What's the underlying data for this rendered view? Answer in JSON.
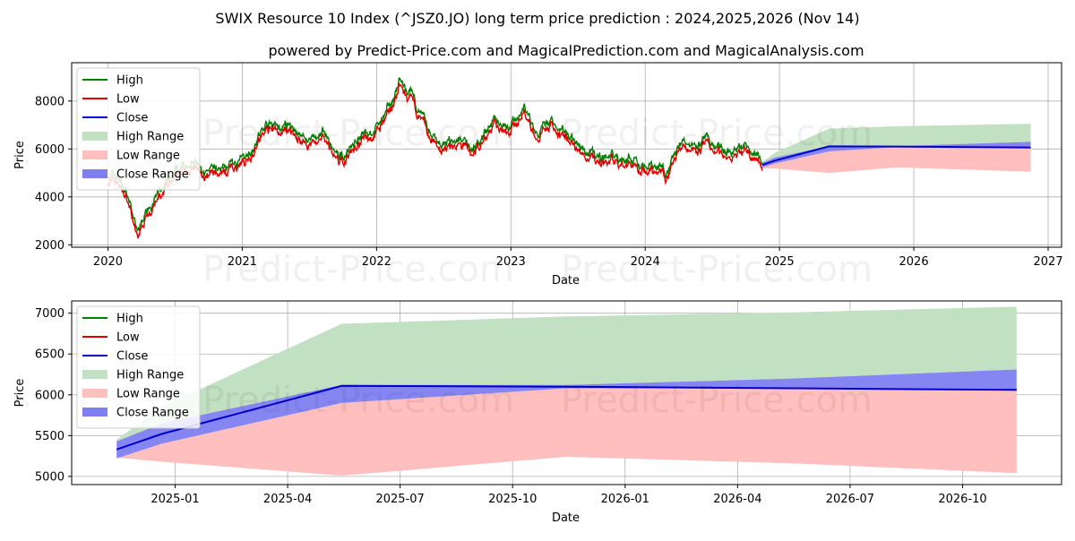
{
  "title": "SWIX Resource 10 Index (^JSZ0.JO) long term price prediction : 2024,2025,2026 (Nov 14)",
  "subtitle": "powered by Predict-Price.com and MagicalPrediction.com and MagicalAnalysis.com",
  "watermark": "Predict-Price.com",
  "colors": {
    "high": "#008000",
    "low": "#e00000",
    "close": "#0000cc",
    "high_range": "#c2e0c2",
    "low_range": "#ffbfbf",
    "close_range": "#7f7ff2",
    "grid": "#b0b0b0"
  },
  "chart_data": [
    {
      "type": "line",
      "name": "long-term",
      "xlabel": "Date",
      "ylabel": "Price",
      "xlim": [
        2019.73,
        2027.1
      ],
      "ylim": [
        1900,
        9600
      ],
      "xticks": [
        2020,
        2021,
        2022,
        2023,
        2024,
        2025,
        2026,
        2027
      ],
      "xtick_labels": [
        "2020",
        "2021",
        "2022",
        "2023",
        "2024",
        "2025",
        "2026",
        "2027"
      ],
      "yticks": [
        2000,
        4000,
        6000,
        8000
      ],
      "ytick_labels": [
        "2000",
        "4000",
        "6000",
        "8000"
      ],
      "legend": [
        "High",
        "Low",
        "Close",
        "High Range",
        "Low Range",
        "Close Range"
      ],
      "legend_position": "upper left",
      "history_anchors": {
        "x": [
          2020.0,
          2020.08,
          2020.16,
          2020.22,
          2020.3,
          2020.45,
          2020.6,
          2020.75,
          2020.85,
          2021.0,
          2021.18,
          2021.35,
          2021.5,
          2021.6,
          2021.72,
          2021.85,
          2022.0,
          2022.1,
          2022.17,
          2022.3,
          2022.38,
          2022.5,
          2022.6,
          2022.72,
          2022.85,
          2023.0,
          2023.1,
          2023.2,
          2023.3,
          2023.45,
          2023.55,
          2023.65,
          2023.8,
          2024.0,
          2024.15,
          2024.28,
          2024.45,
          2024.6,
          2024.7,
          2024.78,
          2024.87
        ],
        "close": [
          4800,
          4700,
          3800,
          2300,
          3600,
          4400,
          5400,
          4800,
          5100,
          5400,
          6900,
          6700,
          6300,
          6500,
          5300,
          6300,
          6800,
          7600,
          8700,
          7600,
          6600,
          6000,
          6300,
          5800,
          7000,
          7000,
          7600,
          6400,
          7000,
          6600,
          5700,
          5600,
          5600,
          5300,
          5000,
          6200,
          6200,
          5700,
          5800,
          6000,
          5350
        ]
      },
      "forecast": {
        "x": [
          2024.87,
          2024.97,
          2025.37,
          2025.87,
          2026.87
        ],
        "high_range_upper": [
          5450,
          5850,
          6850,
          6950,
          7050
        ],
        "low_range_lower": [
          5200,
          5180,
          5000,
          5230,
          5050
        ],
        "close_range_upper": [
          5420,
          5650,
          6120,
          6120,
          6300
        ],
        "close_range_lower": [
          5220,
          5400,
          5900,
          6080,
          6040
        ],
        "close": [
          5330,
          5520,
          6110,
          6100,
          6060
        ]
      }
    },
    {
      "type": "line",
      "name": "forecast-detail",
      "xlabel": "Date",
      "ylabel": "Price",
      "xlim": [
        2024.77,
        2026.97
      ],
      "ylim": [
        4900,
        7150
      ],
      "xticks": [
        2025.0,
        2025.25,
        2025.5,
        2025.75,
        2026.0,
        2026.25,
        2026.5,
        2026.75
      ],
      "xtick_labels": [
        "2025-01",
        "2025-04",
        "2025-07",
        "2025-10",
        "2026-01",
        "2026-04",
        "2026-07",
        "2026-10"
      ],
      "yticks": [
        5000,
        5500,
        6000,
        6500,
        7000
      ],
      "ytick_labels": [
        "5000",
        "5500",
        "6000",
        "6500",
        "7000"
      ],
      "legend": [
        "High",
        "Low",
        "Close",
        "High Range",
        "Low Range",
        "Close Range"
      ],
      "legend_position": "upper left",
      "forecast": {
        "x": [
          2024.87,
          2024.97,
          2025.37,
          2025.87,
          2026.37,
          2026.87
        ],
        "high_range_upper": [
          5450,
          5850,
          6870,
          6960,
          7010,
          7080
        ],
        "low_range_lower": [
          5230,
          5180,
          5010,
          5240,
          5160,
          5040
        ],
        "close_range_upper": [
          5430,
          5650,
          6120,
          6120,
          6200,
          6310
        ],
        "close_range_lower": [
          5220,
          5400,
          5900,
          6080,
          6080,
          6050
        ],
        "close": [
          5330,
          5520,
          6110,
          6100,
          6080,
          6060
        ]
      }
    }
  ]
}
